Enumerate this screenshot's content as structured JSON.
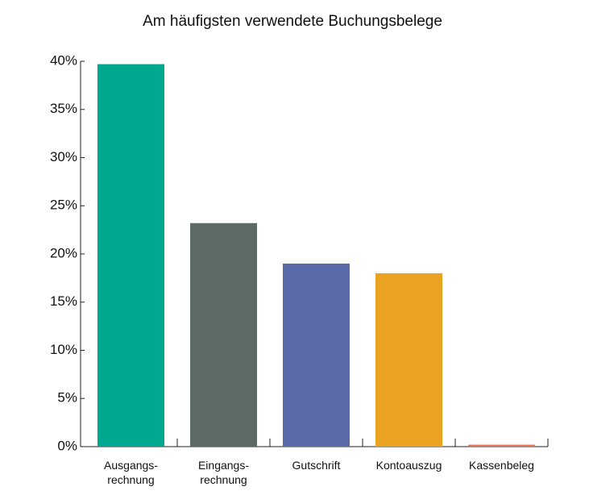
{
  "chart_data": {
    "type": "bar",
    "title": "Am häufigsten verwendete Buchungsbelege",
    "categories": [
      "Ausgangs-\nrechnung",
      "Eingangs-\nrechnung",
      "Gutschrift",
      "Kontoauszug",
      "Kassenbeleg"
    ],
    "values": [
      39.7,
      23.2,
      19,
      18,
      0.2
    ],
    "colors": [
      "#00a88f",
      "#5c6b65",
      "#5a6aa8",
      "#e9a321",
      "#e8735a"
    ],
    "ylim": [
      0,
      40
    ],
    "yticks": [
      {
        "value": 0,
        "label": "0%"
      },
      {
        "value": 5,
        "label": "5%"
      },
      {
        "value": 10,
        "label": "10%"
      },
      {
        "value": 15,
        "label": "15%"
      },
      {
        "value": 20,
        "label": "20%"
      },
      {
        "value": 25,
        "label": "25%"
      },
      {
        "value": 30,
        "label": "30%"
      },
      {
        "value": 35,
        "label": "35%"
      },
      {
        "value": 40,
        "label": "40%"
      }
    ],
    "grid": false
  }
}
